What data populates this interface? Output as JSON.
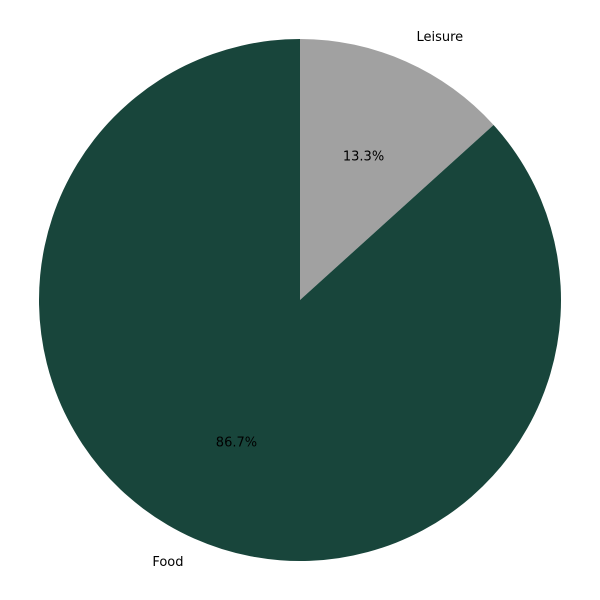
{
  "chart_data": {
    "type": "pie",
    "title": "",
    "labels": [
      "Leisure",
      "Food"
    ],
    "values": [
      13.3,
      86.7
    ],
    "percent_labels": [
      "13.3%",
      "86.7%"
    ],
    "colors": [
      "#a1a1a1",
      "#18453b"
    ],
    "start_angle_deg": 90,
    "direction": "clockwise",
    "legend": "none"
  }
}
